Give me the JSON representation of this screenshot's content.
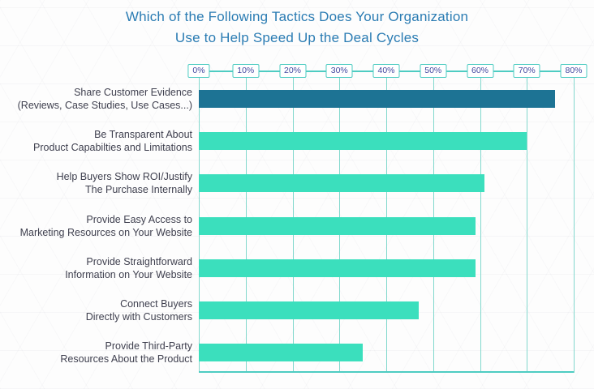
{
  "title": {
    "line1": "Which of the Following Tactics Does Your Organization",
    "line2": "Use to Help Speed Up the Deal Cycles"
  },
  "chart_data": {
    "type": "bar",
    "orientation": "horizontal",
    "title": "Which of the Following Tactics Does Your Organization Use to Help Speed Up the Deal Cycles",
    "categories": [
      [
        "Share Customer Evidence",
        "(Reviews, Case Studies, Use Cases...)"
      ],
      [
        "Be Transparent About",
        "Product Capabilties and Limitations"
      ],
      [
        "Help Buyers Show ROI/Justify",
        "The Purchase Internally"
      ],
      [
        "Provide Easy Access to",
        "Marketing Resources on Your Website"
      ],
      [
        "Provide Straightforward",
        "Information on Your Website"
      ],
      [
        "Connect Buyers",
        "Directly with Customers"
      ],
      [
        "Provide Third-Party",
        "Resources About the Product"
      ]
    ],
    "values": [
      76,
      70,
      61,
      59,
      59,
      47,
      35
    ],
    "value_unit": "%",
    "xlim": [
      0,
      80
    ],
    "x_ticks": [
      "0%",
      "10%",
      "20%",
      "30%",
      "40%",
      "50%",
      "60%",
      "70%",
      "80%"
    ],
    "grid": true,
    "legend": false,
    "highlight_index": 0,
    "colors": {
      "title_text": "#2b7cb3",
      "label_text": "#3f404f",
      "tick_text": "#4247a0",
      "axis": "#4eccc2",
      "gridline": "#82d8cd",
      "bar_highlight": "#1d7394",
      "bar_default": "#3bdfbd",
      "tick_box_bg": "#ffffff"
    }
  }
}
